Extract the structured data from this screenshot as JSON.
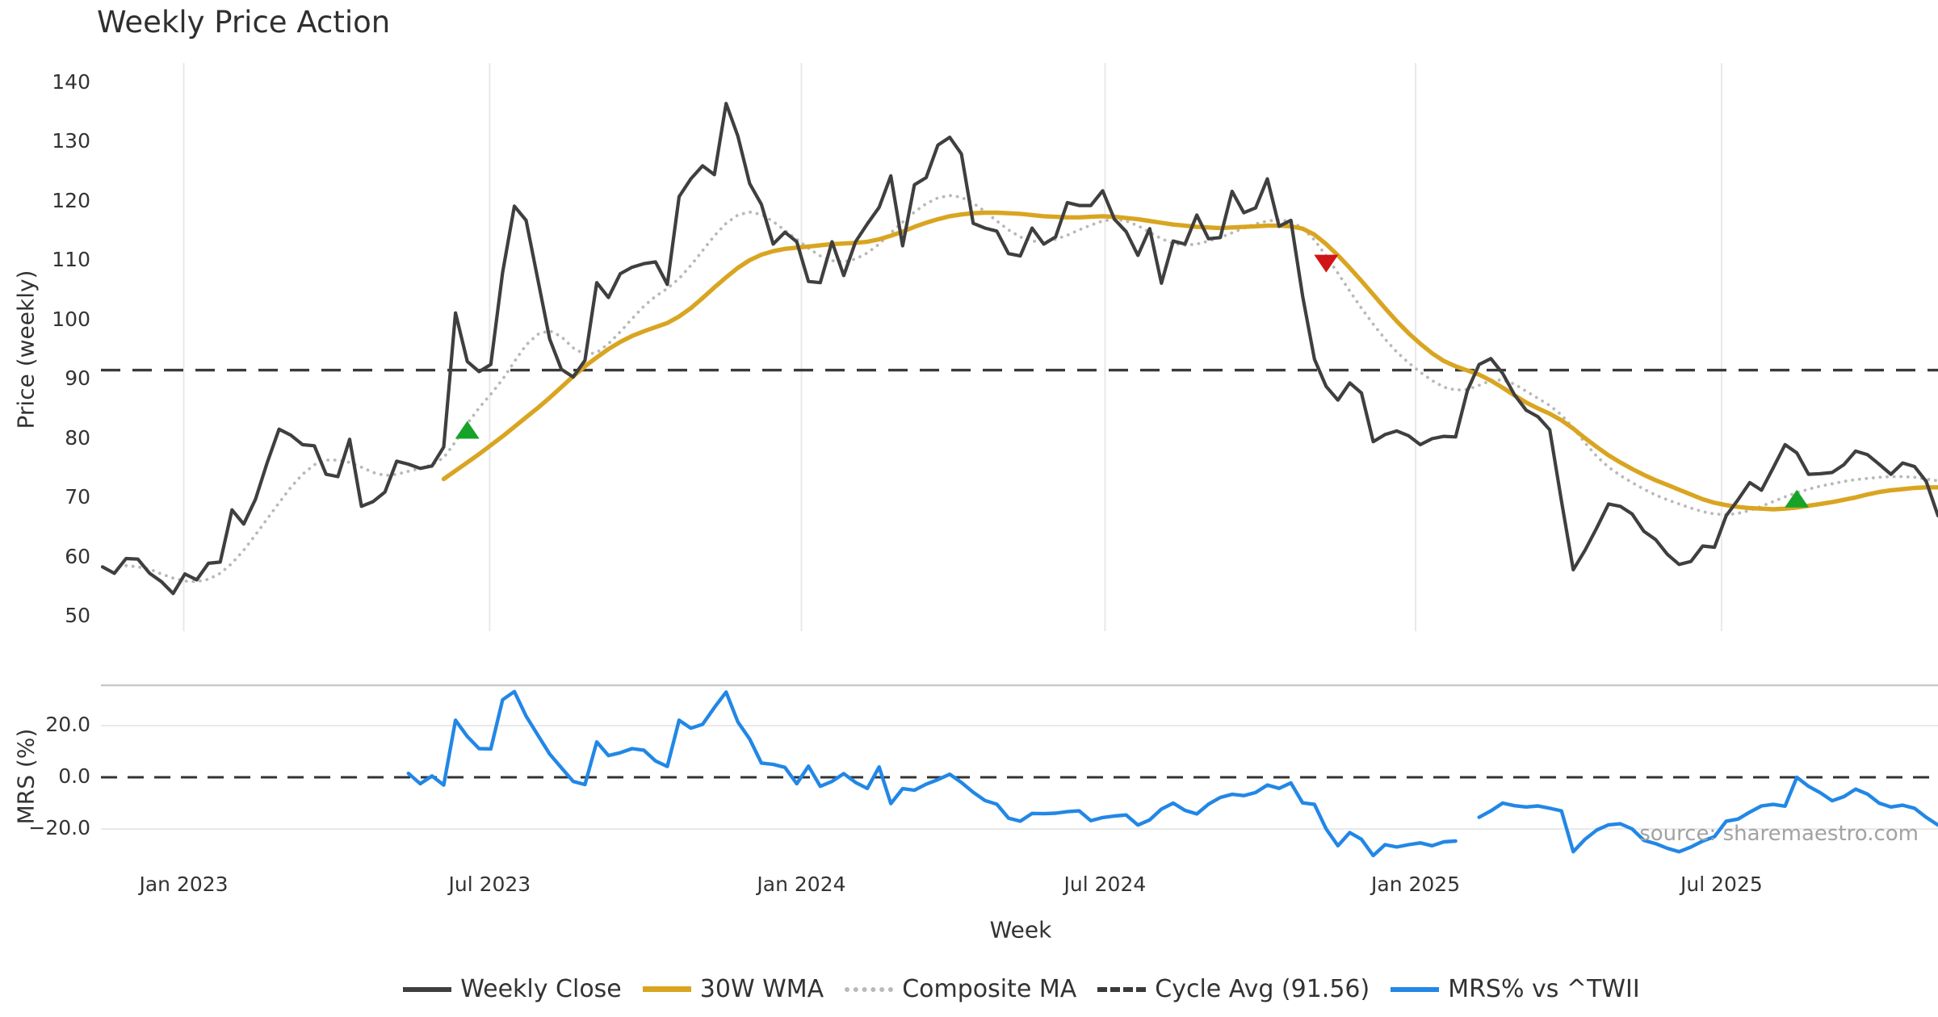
{
  "title": "Weekly Price Action",
  "source_note": "source: sharemaestro.com",
  "axes": {
    "price_axis_label": "Price (weekly)",
    "mrs_axis_label": "MRS (%)",
    "x_axis_label": "Week"
  },
  "legend": {
    "items": [
      {
        "label": "Weekly Close",
        "color": "#3f3f3f",
        "style": "solid"
      },
      {
        "label": "30W WMA",
        "color": "#d9a521",
        "style": "solid-thick"
      },
      {
        "label": "Composite MA",
        "color": "#b9b9b9",
        "style": "dotted"
      },
      {
        "label": "Cycle Avg (91.56)",
        "color": "#3a3a3a",
        "style": "dashed"
      },
      {
        "label": "MRS% vs ^TWII",
        "color": "#2287e6",
        "style": "solid"
      }
    ]
  },
  "chart_data": {
    "type": "line",
    "title": "Weekly Price Action",
    "xlabel": "Week",
    "x_unit": "week_index",
    "x_range_weeks": [
      0,
      156
    ],
    "x_ticks": [
      {
        "week": 6.9,
        "label": "Jan 2023"
      },
      {
        "week": 32.9,
        "label": "Jul 2023"
      },
      {
        "week": 59.4,
        "label": "Jan 2024"
      },
      {
        "week": 85.2,
        "label": "Jul 2024"
      },
      {
        "week": 111.6,
        "label": "Jan 2025"
      },
      {
        "week": 137.6,
        "label": "Jul 2025"
      }
    ],
    "panels": [
      {
        "name": "price",
        "ylabel": "Price (weekly)",
        "ylim": [
          48,
          142
        ],
        "yticks": [
          140,
          130,
          120,
          110,
          100,
          90,
          80,
          70,
          60,
          50
        ],
        "grid": "vertical-only",
        "hline": {
          "label": "Cycle Avg (91.56)",
          "value": 91.56,
          "style": "dashed",
          "color": "#3a3a3a"
        }
      },
      {
        "name": "mrs",
        "ylabel": "MRS (%)",
        "ylim": [
          -35,
          37
        ],
        "yticks": [
          {
            "value": 20,
            "label": "20.0"
          },
          {
            "value": 0,
            "label": "0.0"
          },
          {
            "value": -20,
            "label": "−20.0"
          }
        ],
        "grid": "horizontal-only",
        "hline": {
          "label": "zero",
          "value": 0,
          "style": "dashed",
          "color": "#333333"
        }
      }
    ],
    "series": [
      {
        "name": "Weekly Close",
        "panel": "price",
        "color": "#3f3f3f",
        "style": "solid",
        "width": 4.2,
        "start_week": 0,
        "values": [
          58.4,
          57.3,
          59.8,
          59.7,
          57.3,
          55.9,
          53.9,
          57.2,
          56.2,
          59,
          59.2,
          68,
          65.6,
          69.8,
          76,
          81.6,
          80.6,
          79,
          78.8,
          74,
          73.6,
          79.9,
          68.6,
          69.4,
          71,
          76.2,
          75.7,
          75,
          75.4,
          78.6,
          101.2,
          93,
          91.3,
          92.5,
          108,
          119.2,
          116.8,
          106.8,
          96.8,
          91.7,
          90.4,
          93.2,
          106.3,
          103.8,
          107.8,
          108.9,
          109.5,
          109.8,
          106,
          120.8,
          123.8,
          126,
          124.5,
          136.5,
          131,
          123,
          119.5,
          112.8,
          114.8,
          113.2,
          106.5,
          106.3,
          113.2,
          107.5,
          113.2,
          116.2,
          119,
          124.3,
          112.5,
          122.8,
          124,
          129.5,
          130.8,
          128,
          116.3,
          115.5,
          115,
          111.2,
          110.8,
          115.5,
          112.8,
          114,
          119.8,
          119.3,
          119.3,
          121.8,
          117,
          114.9,
          110.9,
          115.4,
          106.2,
          113.3,
          112.8,
          117.7,
          113.7,
          113.9,
          121.7,
          118.1,
          118.9,
          123.8,
          115.8,
          116.8,
          104,
          93.4,
          88.8,
          86.5,
          89.4,
          87.7,
          79.5,
          80.7,
          81.3,
          80.5,
          79,
          80,
          80.4,
          80.3,
          88.1,
          92.5,
          93.5,
          91,
          87.4,
          84.8,
          83.7,
          81.5,
          69.5,
          57.9,
          61.2,
          65,
          69,
          68.6,
          67.3,
          64.4,
          63,
          60.5,
          58.8,
          59.3,
          61.9,
          61.7,
          67,
          69.7,
          72.6,
          71.3,
          75.1,
          79,
          77.6,
          74,
          74.1,
          74.3,
          75.6,
          77.9,
          77.3,
          75.7,
          74,
          75.9,
          75.3,
          72.8,
          67
        ]
      },
      {
        "name": "30W WMA",
        "panel": "price",
        "color": "#d9a521",
        "style": "solid",
        "width": 5.4,
        "start_week": 29,
        "values": [
          73.2,
          74.6,
          76,
          77.4,
          78.9,
          80.4,
          82,
          83.6,
          85.2,
          86.9,
          88.7,
          90.5,
          92.2,
          93.7,
          95.1,
          96.3,
          97.3,
          98.1,
          98.8,
          99.5,
          100.6,
          102,
          103.7,
          105.5,
          107.2,
          108.8,
          110.1,
          111,
          111.6,
          112,
          112.2,
          112.4,
          112.6,
          112.8,
          112.9,
          113,
          113.2,
          113.6,
          114.2,
          114.9,
          115.7,
          116.4,
          117,
          117.5,
          117.8,
          118,
          118.1,
          118.1,
          118,
          117.9,
          117.7,
          117.5,
          117.4,
          117.3,
          117.3,
          117.4,
          117.5,
          117.4,
          117.2,
          117,
          116.7,
          116.4,
          116.1,
          115.9,
          115.7,
          115.6,
          115.5,
          115.6,
          115.7,
          115.8,
          115.9,
          115.9,
          115.8,
          115.4,
          114.4,
          112.8,
          110.9,
          108.8,
          106.6,
          104.3,
          102,
          99.8,
          97.8,
          96,
          94.4,
          93.1,
          92.2,
          91.5,
          90.8,
          89.8,
          88.6,
          87.3,
          86.1,
          85.1,
          84.2,
          83.1,
          81.7,
          80.1,
          78.6,
          77.2,
          76,
          74.9,
          73.9,
          73,
          72.2,
          71.4,
          70.6,
          69.8,
          69.2,
          68.8,
          68.5,
          68.3,
          68.2,
          68.1,
          68.2,
          68.4,
          68.7,
          69,
          69.3,
          69.7,
          70.1,
          70.6,
          71,
          71.3,
          71.5,
          71.7,
          71.8,
          71.8
        ]
      },
      {
        "name": "Composite MA",
        "panel": "price",
        "color": "#b9b9b9",
        "style": "dotted",
        "width": 3.8,
        "start_week": 2,
        "values": [
          58.6,
          58.4,
          58,
          57.2,
          56.5,
          56,
          55.9,
          56.3,
          57.3,
          59,
          61.2,
          63.8,
          66.5,
          69.2,
          71.8,
          74,
          75.6,
          76.4,
          76.4,
          76,
          75.2,
          74.3,
          73.8,
          74,
          74.5,
          75,
          75.6,
          76.8,
          79.5,
          82.5,
          85.2,
          87.5,
          90,
          93,
          95.8,
          97.6,
          98.2,
          97.2,
          95.3,
          94.2,
          94.5,
          96,
          98,
          100.2,
          102.3,
          104,
          105.3,
          107,
          109.2,
          111.7,
          114.2,
          116.3,
          117.7,
          118.2,
          117.8,
          116.6,
          115.1,
          113.6,
          112.1,
          110.8,
          110,
          109.8,
          110.3,
          111.3,
          112.8,
          114.7,
          116.5,
          118.2,
          119.6,
          120.6,
          121,
          120.7,
          119.7,
          118.3,
          116.7,
          115.2,
          114,
          113.3,
          113.2,
          113.6,
          114.3,
          115.2,
          116,
          116.7,
          117,
          116.7,
          115.9,
          114.8,
          113.7,
          112.9,
          112.6,
          112.8,
          113.3,
          113.9,
          114.7,
          115.5,
          116.2,
          116.7,
          116.9,
          116.6,
          115.5,
          113.5,
          110.8,
          107.9,
          104.9,
          102,
          99.3,
          96.8,
          94.6,
          92.8,
          91.2,
          89.8,
          88.7,
          88.2,
          88.3,
          89,
          89.8,
          89.9,
          89.2,
          88,
          86.8,
          85.6,
          84,
          81.8,
          79.3,
          77,
          75.2,
          73.8,
          72.6,
          71.5,
          70.5,
          69.7,
          69,
          68.3,
          67.7,
          67.3,
          67.2,
          67.4,
          67.9,
          68.6,
          69.4,
          70.2,
          70.9,
          71.5,
          72,
          72.4,
          72.8,
          73.1,
          73.3,
          73.5,
          73.6,
          73.6,
          73.5,
          73.2,
          72.9
        ]
      },
      {
        "name": "MRS% vs ^TWII",
        "panel": "mrs",
        "color": "#2287e6",
        "style": "solid",
        "width": 4.4,
        "start_week": 26,
        "values": [
          1.5,
          -2.5,
          0.5,
          -3,
          22.1,
          15.8,
          11.1,
          11,
          30,
          33.2,
          23.7,
          16.3,
          9,
          3.7,
          -1.6,
          -2.8,
          13.7,
          8.4,
          9.5,
          11.1,
          10.5,
          6.3,
          4.2,
          22.1,
          19,
          20.5,
          27,
          33,
          21.4,
          14.8,
          5.5,
          5,
          3.8,
          -2.5,
          4.3,
          -3.5,
          -1.6,
          1.4,
          -2,
          -4.3,
          4,
          -10.2,
          -4.4,
          -5,
          -2.7,
          -0.9,
          1.2,
          -2,
          -5.8,
          -9,
          -10.4,
          -15.8,
          -17,
          -14,
          -14.1,
          -13.9,
          -13.3,
          -13,
          -16.8,
          -15.6,
          -15,
          -14.6,
          -18.5,
          -16.5,
          -12.3,
          -10,
          -12.8,
          -14.2,
          -10.4,
          -7.8,
          -6.6,
          -7.1,
          -5.9,
          -3,
          -4.3,
          -2.2,
          -9.9,
          -10.5,
          -20,
          -26.5,
          -21.4,
          -24,
          -30.3,
          -26.1,
          -27,
          -26.1,
          -25.4,
          -26.5,
          -25,
          -24.7,
          null,
          -15.5,
          -13,
          -10,
          -11,
          -11.5,
          -11.1,
          -12,
          -13,
          -28.8,
          -24,
          -20.4,
          -18.4,
          -18,
          -20,
          -24.4,
          -25.7,
          -27.5,
          -28.8,
          -27,
          -24.7,
          -23,
          -17,
          -16.2,
          -13.5,
          -11.1,
          -10.5,
          -11.2,
          0,
          -3.5,
          -6,
          -9.1,
          -7.5,
          -4.6,
          -6.5,
          -10,
          -11.5,
          -10.8,
          -12,
          -15.5,
          -18.5
        ]
      }
    ],
    "markers": [
      {
        "type": "buy",
        "shape": "triangle-up",
        "color": "#17a327",
        "week": 31,
        "price": 81.5
      },
      {
        "type": "sell",
        "shape": "triangle-down",
        "color": "#cf1516",
        "week": 104,
        "price": 109.5
      },
      {
        "type": "buy",
        "shape": "triangle-up",
        "color": "#17a327",
        "week": 144,
        "price": 69.9
      }
    ],
    "colors": {
      "grid": "#e9e9e9",
      "panel_border": "#c9c9c9",
      "tick_text": "#333333",
      "source_text": "#a2a2a2",
      "background": "#ffffff"
    }
  }
}
